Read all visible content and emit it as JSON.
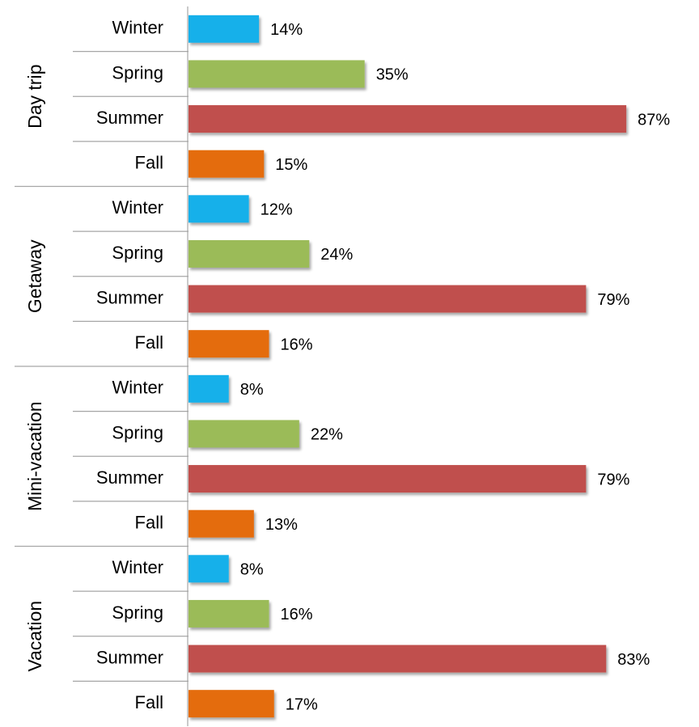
{
  "chart_data": {
    "type": "bar",
    "orientation": "horizontal",
    "categories": [
      "Day trip",
      "Getaway",
      "Mini-vacation",
      "Vacation"
    ],
    "series": [
      {
        "name": "Winter",
        "color": "#17b0ea",
        "values": [
          14,
          12,
          8,
          8
        ],
        "value_labels": [
          "14%",
          "12%",
          "8%",
          "8%"
        ]
      },
      {
        "name": "Spring",
        "color": "#9bbb59",
        "values": [
          35,
          24,
          22,
          16
        ],
        "value_labels": [
          "35%",
          "24%",
          "22%",
          "16%"
        ]
      },
      {
        "name": "Summer",
        "color": "#c0504d",
        "values": [
          87,
          79,
          79,
          83
        ],
        "value_labels": [
          "87%",
          "79%",
          "79%",
          "83%"
        ]
      },
      {
        "name": "Fall",
        "color": "#e46c0a",
        "values": [
          15,
          16,
          13,
          17
        ],
        "value_labels": [
          "15%",
          "16%",
          "13%",
          "17%"
        ]
      }
    ],
    "xlim": [
      0,
      100
    ]
  }
}
